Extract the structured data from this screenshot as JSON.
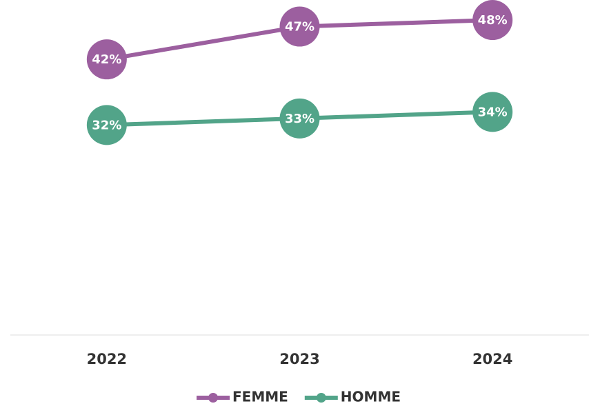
{
  "chart_data": {
    "type": "line",
    "categories": [
      "2022",
      "2023",
      "2024"
    ],
    "series": [
      {
        "name": "FEMME",
        "color": "#9c5f9f",
        "values": [
          42,
          47,
          48
        ],
        "value_labels": [
          "42%",
          "47%",
          "48%"
        ]
      },
      {
        "name": "HOMME",
        "color": "#52a489",
        "values": [
          32,
          33,
          34
        ],
        "value_labels": [
          "32%",
          "33%",
          "34%"
        ]
      }
    ],
    "ylim": [
      0,
      50
    ]
  }
}
